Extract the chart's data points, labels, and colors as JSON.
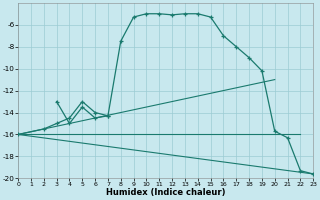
{
  "bg_color": "#c8e8ee",
  "grid_color": "#9cccd4",
  "line_color": "#1a7a6e",
  "xlim": [
    0,
    23
  ],
  "ylim": [
    -20,
    -4
  ],
  "xticks": [
    0,
    1,
    2,
    3,
    4,
    5,
    6,
    7,
    8,
    9,
    10,
    11,
    12,
    13,
    14,
    15,
    16,
    17,
    18,
    19,
    20,
    21,
    22,
    23
  ],
  "yticks": [
    -20,
    -18,
    -16,
    -14,
    -12,
    -10,
    -8,
    -6
  ],
  "xlabel": "Humidex (Indice chaleur)",
  "curve_main_x": [
    0,
    2,
    3,
    4,
    5,
    6,
    7,
    8,
    9,
    10,
    11,
    12,
    13,
    14,
    15,
    16,
    17,
    18,
    19,
    20,
    21,
    22,
    23
  ],
  "curve_main_y": [
    -16,
    -15.5,
    -15,
    -14.5,
    -13,
    -14,
    -14.3,
    -7.5,
    -5.3,
    -5.0,
    -5.0,
    -5.1,
    -5.0,
    -5.0,
    -5.3,
    -7.0,
    -8.0,
    -9.0,
    -10.2,
    -15.7,
    -16.3,
    -19.3,
    -19.6
  ],
  "curve_short_x": [
    3,
    4,
    5,
    6,
    7
  ],
  "curve_short_y": [
    -13,
    -15,
    -13.5,
    -14.5,
    -14.3
  ],
  "line1_x": [
    0,
    20
  ],
  "line1_y": [
    -16,
    -11
  ],
  "line2_x": [
    0,
    22
  ],
  "line2_y": [
    -16,
    -16.0
  ],
  "line3_x": [
    0,
    23
  ],
  "line3_y": [
    -16,
    -19.6
  ]
}
